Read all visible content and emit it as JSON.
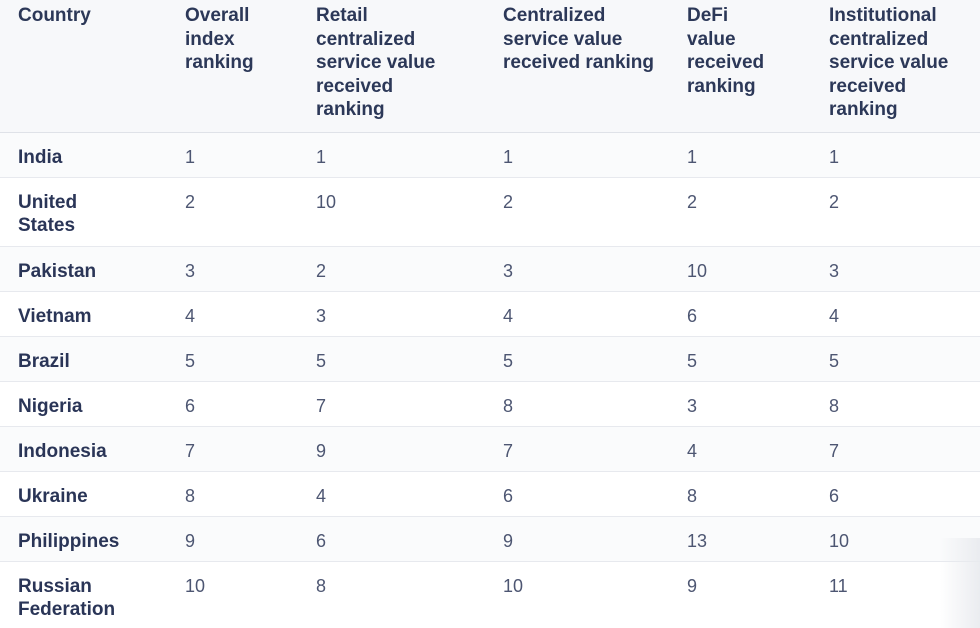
{
  "table": {
    "headers": [
      "Country",
      "Overall index ranking",
      "Retail centralized service value received ranking",
      "Centralized service value received ranking",
      "DeFi value received ranking",
      "Institutional centralized service value received ranking"
    ],
    "rows": [
      [
        "India",
        "1",
        "1",
        "1",
        "1",
        "1"
      ],
      [
        "United States",
        "2",
        "10",
        "2",
        "2",
        "2"
      ],
      [
        "Pakistan",
        "3",
        "2",
        "3",
        "10",
        "3"
      ],
      [
        "Vietnam",
        "4",
        "3",
        "4",
        "6",
        "4"
      ],
      [
        "Brazil",
        "5",
        "5",
        "5",
        "5",
        "5"
      ],
      [
        "Nigeria",
        "6",
        "7",
        "8",
        "3",
        "8"
      ],
      [
        "Indonesia",
        "7",
        "9",
        "7",
        "4",
        "7"
      ],
      [
        "Ukraine",
        "8",
        "4",
        "6",
        "8",
        "6"
      ],
      [
        "Philippines",
        "9",
        "6",
        "9",
        "13",
        "10"
      ],
      [
        "Russian Federation",
        "10",
        "8",
        "10",
        "9",
        "11"
      ]
    ]
  }
}
